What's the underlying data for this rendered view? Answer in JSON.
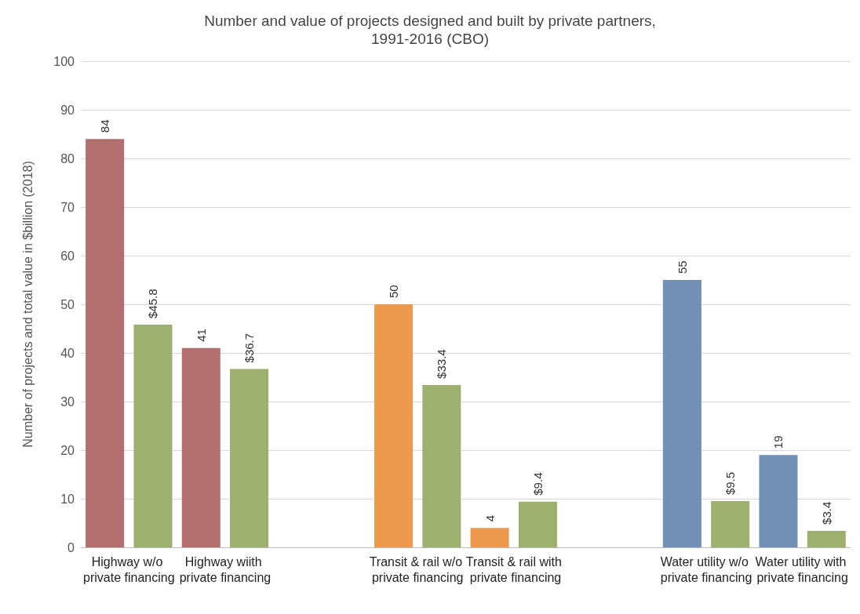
{
  "chart_data": {
    "type": "bar",
    "title": "Number and value of projects designed and built by private partners,\n1991-2016 (CBO)",
    "ylabel": "Number of projects and total value in $billion (2018)",
    "categories": [
      "Highway w/o private financing",
      "Highway wiith private financing",
      null,
      "Transit & rail w/o private financing",
      "Transit & rail with private financing",
      null,
      "Water utility w/o private financing",
      "Water utility with private financing"
    ],
    "series": [
      {
        "colors": [
          "#b36f6f",
          "#b36f6f",
          null,
          "#ec9a50",
          "#ec9a50",
          null,
          "#7290b6",
          "#7290b6"
        ],
        "values": [
          84,
          41,
          null,
          50,
          4,
          null,
          55,
          19
        ],
        "value_labels": [
          "84",
          "41",
          null,
          "50",
          "4",
          null,
          "55",
          "19"
        ]
      },
      {
        "color": "#9db06f",
        "values": [
          45.8,
          36.7,
          null,
          33.4,
          9.4,
          null,
          9.5,
          3.4
        ],
        "value_labels": [
          "$45.8",
          "$36.7",
          null,
          "$33.4",
          "$9.4",
          null,
          "$9.5",
          "$3.4"
        ]
      }
    ],
    "ylim": [
      0,
      100
    ],
    "yticks": [
      0,
      10,
      20,
      30,
      40,
      50,
      60,
      70,
      80,
      90,
      100
    ],
    "grid": "y"
  }
}
